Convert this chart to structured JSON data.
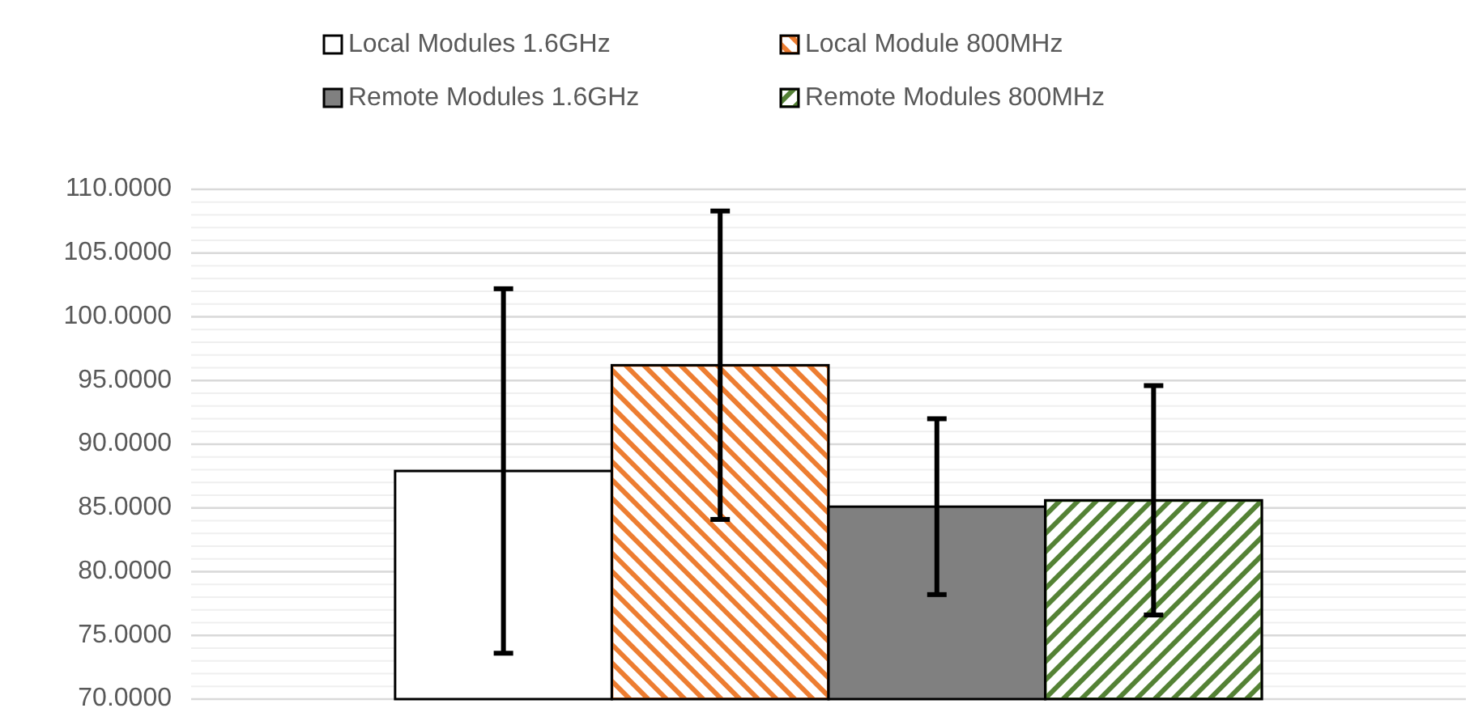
{
  "chart_data": {
    "type": "bar",
    "categories": [
      null
    ],
    "series": [
      {
        "name": "Local Modules 1.6GHz",
        "color": "#ffffff",
        "values": [
          87.9
        ],
        "errors": [
          14.3
        ]
      },
      {
        "name": "Local Module 800MHz",
        "color": "#ed7d31",
        "values": [
          96.2
        ],
        "errors": [
          12.1
        ]
      },
      {
        "name": "Remote Modules 1.6GHz",
        "color": "#808080",
        "values": [
          85.1
        ],
        "errors": [
          6.9
        ]
      },
      {
        "name": "Remote Modules 800MHz",
        "color": "#548235",
        "values": [
          85.6
        ],
        "errors": [
          9.0
        ]
      }
    ],
    "ylim": [
      70,
      110
    ],
    "yticks": [
      {
        "value": 70,
        "label": "70.0000"
      },
      {
        "value": 75,
        "label": "75.0000"
      },
      {
        "value": 80,
        "label": "80.0000"
      },
      {
        "value": 85,
        "label": "85.0000"
      },
      {
        "value": 90,
        "label": "90.0000"
      },
      {
        "value": 95,
        "label": "95.0000"
      },
      {
        "value": 100,
        "label": "100.0000"
      },
      {
        "value": 105,
        "label": "105.0000"
      },
      {
        "value": 110,
        "label": "110.0000"
      }
    ],
    "grid": "y",
    "legend": "top"
  }
}
